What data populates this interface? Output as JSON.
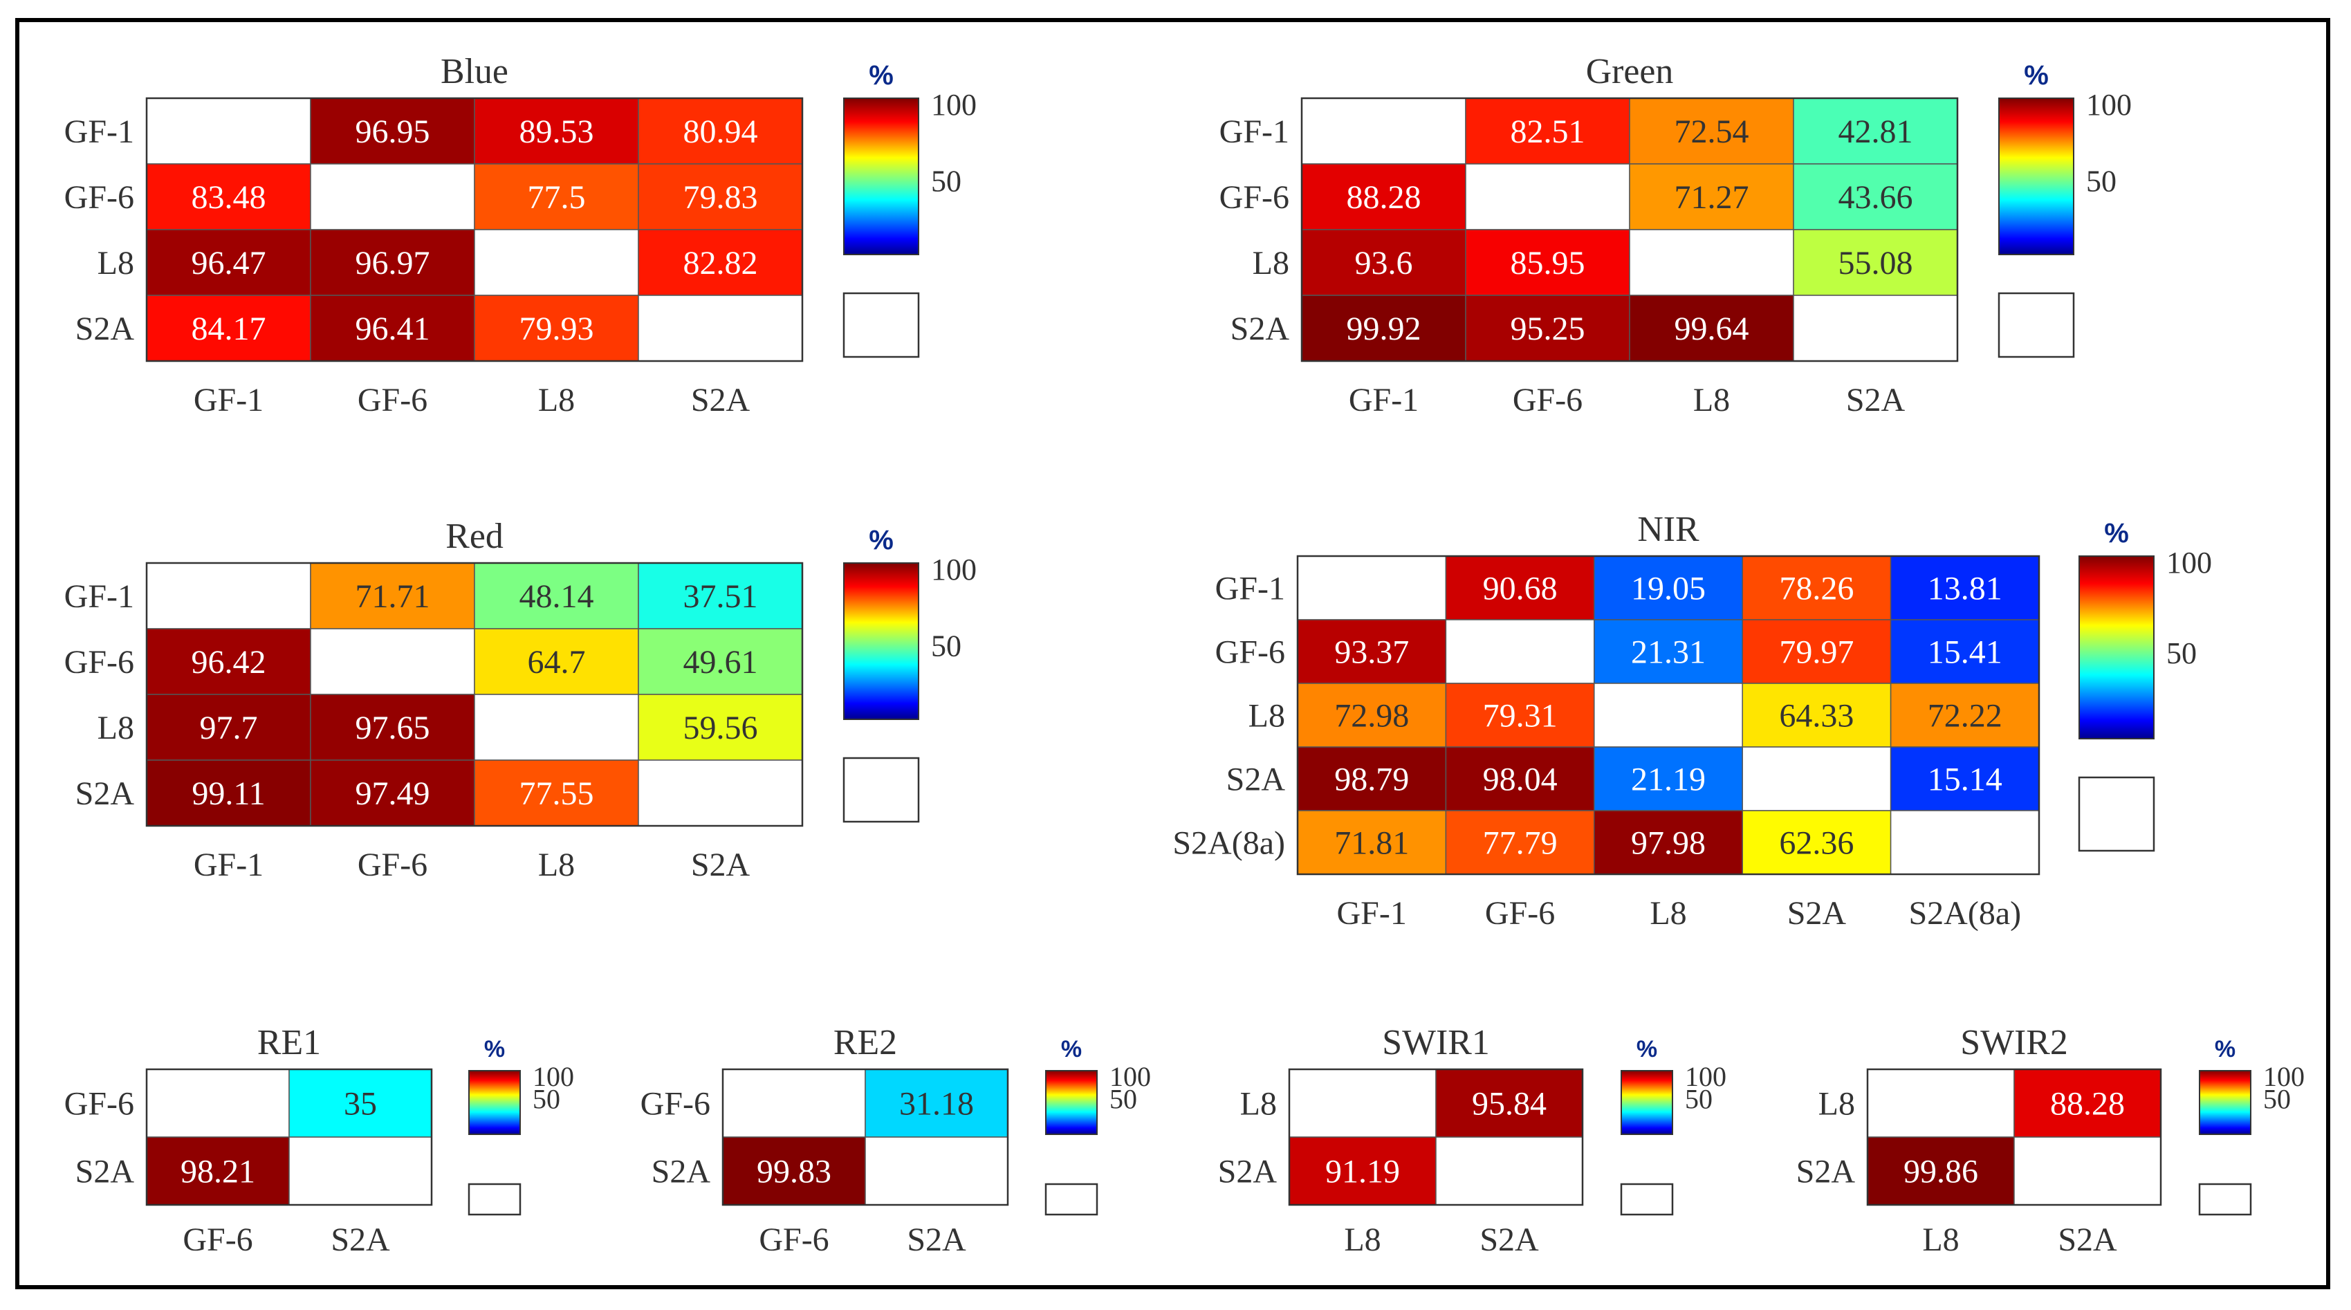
{
  "figure": {
    "border_color": "#000000",
    "nan_color": "#ffffff"
  },
  "colormap": {
    "name": "jet",
    "stops": [
      "#00008f",
      "#0000ff",
      "#00ffff",
      "#ffff00",
      "#ff0000",
      "#800000"
    ],
    "percent_label": "%",
    "legend_nan_swatch": "blank"
  },
  "chart_data": [
    {
      "type": "heatmap",
      "title": "Blue",
      "rows": [
        "GF-1",
        "GF-6",
        "L8",
        "S2A"
      ],
      "cols": [
        "GF-1",
        "GF-6",
        "L8",
        "S2A"
      ],
      "values": [
        [
          null,
          96.95,
          89.53,
          80.94
        ],
        [
          83.48,
          null,
          77.5,
          79.83
        ],
        [
          96.47,
          96.97,
          null,
          82.82
        ],
        [
          84.17,
          96.41,
          79.93,
          null
        ]
      ],
      "labels": [
        [
          "",
          "96.95",
          "89.53",
          "80.94"
        ],
        [
          "83.48",
          "",
          "77.5",
          "79.83"
        ],
        [
          "96.47",
          "96.97",
          "",
          "82.82"
        ],
        [
          "84.17",
          "96.41",
          "79.93",
          ""
        ]
      ],
      "colorbar": {
        "unit": "%",
        "ticks": [
          "100",
          "50"
        ],
        "range": [
          0,
          100
        ]
      }
    },
    {
      "type": "heatmap",
      "title": "Green",
      "rows": [
        "GF-1",
        "GF-6",
        "L8",
        "S2A"
      ],
      "cols": [
        "GF-1",
        "GF-6",
        "L8",
        "S2A"
      ],
      "values": [
        [
          null,
          82.51,
          72.54,
          42.81
        ],
        [
          88.28,
          null,
          71.27,
          43.66
        ],
        [
          93.6,
          85.95,
          null,
          55.08
        ],
        [
          99.92,
          95.25,
          99.64,
          null
        ]
      ],
      "labels": [
        [
          "",
          "82.51",
          "72.54",
          "42.81"
        ],
        [
          "88.28",
          "",
          "71.27",
          "43.66"
        ],
        [
          "93.6",
          "85.95",
          "",
          "55.08"
        ],
        [
          "99.92",
          "95.25",
          "99.64",
          ""
        ]
      ],
      "colorbar": {
        "unit": "%",
        "ticks": [
          "100",
          "50"
        ],
        "range": [
          0,
          100
        ]
      }
    },
    {
      "type": "heatmap",
      "title": "Red",
      "rows": [
        "GF-1",
        "GF-6",
        "L8",
        "S2A"
      ],
      "cols": [
        "GF-1",
        "GF-6",
        "L8",
        "S2A"
      ],
      "values": [
        [
          null,
          71.71,
          48.14,
          37.51
        ],
        [
          96.42,
          null,
          64.7,
          49.61
        ],
        [
          97.7,
          97.65,
          null,
          59.56
        ],
        [
          99.11,
          97.49,
          77.55,
          null
        ]
      ],
      "labels": [
        [
          "",
          "71.71",
          "48.14",
          "37.51"
        ],
        [
          "96.42",
          "",
          "64.7",
          "49.61"
        ],
        [
          "97.7",
          "97.65",
          "",
          "59.56"
        ],
        [
          "99.11",
          "97.49",
          "77.55",
          ""
        ]
      ],
      "colorbar": {
        "unit": "%",
        "ticks": [
          "100",
          "50"
        ],
        "range": [
          0,
          100
        ]
      }
    },
    {
      "type": "heatmap",
      "title": "NIR",
      "rows": [
        "GF-1",
        "GF-6",
        "L8",
        "S2A",
        "S2A(8a)"
      ],
      "cols": [
        "GF-1",
        "GF-6",
        "L8",
        "S2A",
        "S2A(8a)"
      ],
      "values": [
        [
          null,
          90.68,
          19.05,
          78.26,
          13.81
        ],
        [
          93.37,
          null,
          21.31,
          79.97,
          15.41
        ],
        [
          72.98,
          79.31,
          null,
          64.33,
          72.22
        ],
        [
          98.79,
          98.04,
          21.19,
          null,
          15.14
        ],
        [
          71.81,
          77.79,
          97.98,
          62.36,
          null
        ]
      ],
      "labels": [
        [
          "",
          "90.68",
          "19.05",
          "78.26",
          "13.81"
        ],
        [
          "93.37",
          "",
          "21.31",
          "79.97",
          "15.41"
        ],
        [
          "72.98",
          "79.31",
          "",
          "64.33",
          "72.22"
        ],
        [
          "98.79",
          "98.04",
          "21.19",
          "",
          "15.14"
        ],
        [
          "71.81",
          "77.79",
          "97.98",
          "62.36",
          ""
        ]
      ],
      "colorbar": {
        "unit": "%",
        "ticks": [
          "100",
          "50"
        ],
        "range": [
          0,
          100
        ]
      }
    },
    {
      "type": "heatmap",
      "title": "RE1",
      "rows": [
        "GF-6",
        "S2A"
      ],
      "cols": [
        "GF-6",
        "S2A"
      ],
      "values": [
        [
          null,
          35
        ],
        [
          98.21,
          null
        ]
      ],
      "labels": [
        [
          "",
          "35"
        ],
        [
          "98.21",
          ""
        ]
      ],
      "colorbar": {
        "unit": "%",
        "ticks": [
          "100",
          "50"
        ],
        "range": [
          0,
          100
        ]
      }
    },
    {
      "type": "heatmap",
      "title": "RE2",
      "rows": [
        "GF-6",
        "S2A"
      ],
      "cols": [
        "GF-6",
        "S2A"
      ],
      "values": [
        [
          null,
          31.18
        ],
        [
          99.83,
          null
        ]
      ],
      "labels": [
        [
          "",
          "31.18"
        ],
        [
          "99.83",
          ""
        ]
      ],
      "colorbar": {
        "unit": "%",
        "ticks": [
          "100",
          "50"
        ],
        "range": [
          0,
          100
        ]
      }
    },
    {
      "type": "heatmap",
      "title": "SWIR1",
      "rows": [
        "L8",
        "S2A"
      ],
      "cols": [
        "L8",
        "S2A"
      ],
      "values": [
        [
          null,
          95.84
        ],
        [
          91.19,
          null
        ]
      ],
      "labels": [
        [
          "",
          "95.84"
        ],
        [
          "91.19",
          ""
        ]
      ],
      "colorbar": {
        "unit": "%",
        "ticks": [
          "100",
          "50"
        ],
        "range": [
          0,
          100
        ]
      }
    },
    {
      "type": "heatmap",
      "title": "SWIR2",
      "rows": [
        "L8",
        "S2A"
      ],
      "cols": [
        "L8",
        "S2A"
      ],
      "values": [
        [
          null,
          88.28
        ],
        [
          99.86,
          null
        ]
      ],
      "labels": [
        [
          "",
          "88.28"
        ],
        [
          "99.86",
          ""
        ]
      ],
      "colorbar": {
        "unit": "%",
        "ticks": [
          "100",
          "50"
        ],
        "range": [
          0,
          100
        ]
      }
    }
  ]
}
